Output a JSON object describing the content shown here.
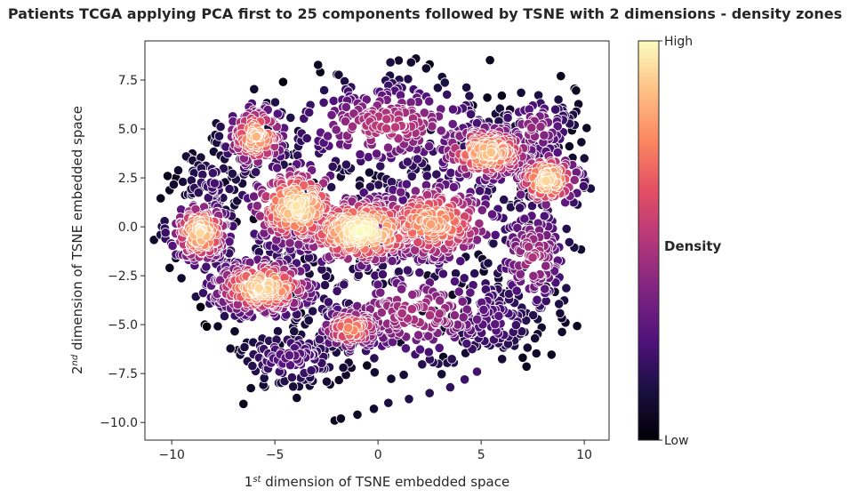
{
  "chart_data": {
    "type": "scatter",
    "title": "Patients TCGA applying PCA first to 25 components followed by TSNE with 2 dimensions - density zones",
    "xlabel": {
      "prefix": "1",
      "sup": "st",
      "rest": " dimension of TSNE embedded space"
    },
    "ylabel": {
      "prefix": "2",
      "sup": "nd",
      "rest": " dimension of TSNE embedded space"
    },
    "xlim": [
      -11.3,
      11.2
    ],
    "ylim": [
      -10.9,
      9.5
    ],
    "xticks": [
      -10,
      -5,
      0,
      5,
      10
    ],
    "xtick_labels": [
      "−10",
      "−5",
      "0",
      "5",
      "10"
    ],
    "yticks": [
      -10,
      -7.5,
      -5,
      -2.5,
      0,
      2.5,
      5,
      7.5
    ],
    "ytick_labels": [
      "−10.0",
      "−7.5",
      "−5.0",
      "−2.5",
      "0.0",
      "2.5",
      "5.0",
      "7.5"
    ],
    "grid": false,
    "colormap": "magma",
    "colorbar": {
      "title": "Density",
      "high_label": "High",
      "low_label": "Low"
    },
    "colors": {
      "marker_edge": "#ffffff",
      "frame": "#262626"
    },
    "density_clusters": [
      {
        "name": "left-cluster",
        "cx": -8.6,
        "cy": -0.3,
        "sx": 0.8,
        "sy": 0.9,
        "n": 180,
        "peak": 0.92
      },
      {
        "name": "upper-left-cluster",
        "cx": -5.9,
        "cy": 4.6,
        "sx": 0.8,
        "sy": 0.9,
        "n": 150,
        "peak": 0.85
      },
      {
        "name": "center-left-cluster",
        "cx": -3.9,
        "cy": 1.0,
        "sx": 1.3,
        "sy": 1.2,
        "n": 260,
        "peak": 0.95
      },
      {
        "name": "lower-left-cluster",
        "cx": -5.6,
        "cy": -3.1,
        "sx": 1.4,
        "sy": 0.8,
        "n": 260,
        "peak": 0.93
      },
      {
        "name": "center-cluster",
        "cx": -0.8,
        "cy": -0.2,
        "sx": 1.8,
        "sy": 1.0,
        "n": 360,
        "peak": 1.0
      },
      {
        "name": "center-right-cluster",
        "cx": 2.6,
        "cy": 0.2,
        "sx": 1.8,
        "sy": 1.2,
        "n": 300,
        "peak": 0.8
      },
      {
        "name": "upper-right-cluster",
        "cx": 5.3,
        "cy": 3.8,
        "sx": 1.3,
        "sy": 0.8,
        "n": 230,
        "peak": 0.88
      },
      {
        "name": "far-right-cluster",
        "cx": 8.2,
        "cy": 2.4,
        "sx": 0.9,
        "sy": 0.8,
        "n": 140,
        "peak": 0.92
      },
      {
        "name": "lower-center-cluster",
        "cx": -1.3,
        "cy": -5.2,
        "sx": 0.9,
        "sy": 0.6,
        "n": 120,
        "peak": 0.75
      },
      {
        "name": "right-spread",
        "cx": 7.5,
        "cy": -1.5,
        "sx": 1.0,
        "sy": 1.6,
        "n": 160,
        "peak": 0.45
      },
      {
        "name": "upper-spread",
        "cx": 0.5,
        "cy": 5.2,
        "sx": 2.6,
        "sy": 1.2,
        "n": 260,
        "peak": 0.5
      },
      {
        "name": "lower-spread",
        "cx": 1.8,
        "cy": -4.4,
        "sx": 2.8,
        "sy": 1.4,
        "n": 260,
        "peak": 0.45
      },
      {
        "name": "bottom-left-spread",
        "cx": -4.2,
        "cy": -6.7,
        "sx": 1.4,
        "sy": 0.8,
        "n": 120,
        "peak": 0.25
      },
      {
        "name": "left-upper-spread",
        "cx": -8.0,
        "cy": 2.2,
        "sx": 0.9,
        "sy": 0.9,
        "n": 70,
        "peak": 0.18
      },
      {
        "name": "bottom-right-spread",
        "cx": 5.5,
        "cy": -4.8,
        "sx": 1.2,
        "sy": 1.0,
        "n": 90,
        "peak": 0.25
      },
      {
        "name": "top-right-spread",
        "cx": 7.6,
        "cy": 5.0,
        "sx": 1.0,
        "sy": 0.9,
        "n": 90,
        "peak": 0.4
      }
    ],
    "sparse_points": [
      [
        -10.2,
        2.6,
        0.05
      ],
      [
        -9.8,
        2.5,
        0.03
      ],
      [
        -10.1,
        -2.1,
        0.05
      ],
      [
        -9.8,
        -1.6,
        0.08
      ],
      [
        -8.6,
        -4.1,
        0.02
      ],
      [
        -8.4,
        -5.0,
        0.01
      ],
      [
        -8.3,
        -5.1,
        0.01
      ],
      [
        -6.8,
        -6.3,
        0.04
      ],
      [
        -4.6,
        7.4,
        0.02
      ],
      [
        -2.8,
        7.9,
        0.04
      ],
      [
        -2.1,
        -9.9,
        0.05
      ],
      [
        -1.8,
        -9.8,
        0.06
      ],
      [
        -1.0,
        -9.6,
        0.07
      ],
      [
        0.6,
        8.4,
        0.12
      ],
      [
        1.0,
        8.5,
        0.08
      ],
      [
        1.6,
        8.4,
        0.1
      ],
      [
        2.5,
        8.3,
        0.03
      ],
      [
        2.9,
        7.1,
        0.12
      ],
      [
        5.3,
        6.6,
        0.06
      ],
      [
        6.0,
        6.7,
        0.05
      ],
      [
        4.6,
        6.2,
        0.08
      ],
      [
        -0.2,
        -9.3,
        0.09
      ],
      [
        0.5,
        -9.0,
        0.12
      ],
      [
        1.5,
        -8.8,
        0.14
      ],
      [
        2.5,
        -8.5,
        0.16
      ],
      [
        3.5,
        -8.2,
        0.18
      ],
      [
        4.2,
        -7.8,
        0.2
      ],
      [
        4.8,
        -7.4,
        0.22
      ],
      [
        10.0,
        2.0,
        0.1
      ],
      [
        10.0,
        3.5,
        0.12
      ],
      [
        -10.3,
        -0.3,
        0.2
      ],
      [
        -9.3,
        3.6,
        0.1
      ]
    ]
  }
}
